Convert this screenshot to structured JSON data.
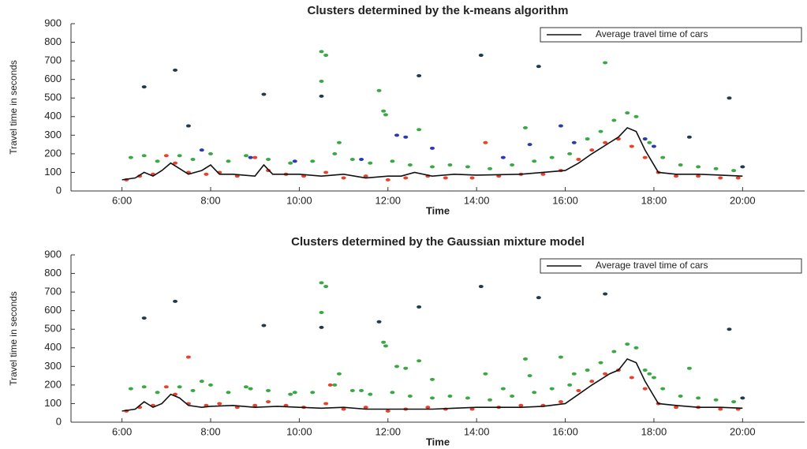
{
  "chart_data": [
    {
      "type": "scatter",
      "title": "Clusters determined by the k-means algorithm",
      "xlabel": "Time",
      "ylabel": "Travel time in seconds",
      "xlim": [
        4.85,
        21.4
      ],
      "xticks": [
        {
          "value": 6,
          "label": "6:00"
        },
        {
          "value": 8,
          "label": "8:00"
        },
        {
          "value": 10,
          "label": "10:00"
        },
        {
          "value": 12,
          "label": "12:00"
        },
        {
          "value": 14,
          "label": "14:00"
        },
        {
          "value": 16,
          "label": "16:00"
        },
        {
          "value": 18,
          "label": "18:00"
        },
        {
          "value": 20,
          "label": "20:00"
        }
      ],
      "ylim": [
        0,
        900
      ],
      "yticks": [
        0,
        100,
        200,
        300,
        400,
        500,
        600,
        700,
        800,
        900
      ],
      "legend": "upper right",
      "series": [
        {
          "color": "#e8412c",
          "x": [
            6.1,
            6.4,
            6.7,
            7.0,
            7.2,
            7.5,
            7.9,
            8.2,
            8.6,
            9.0,
            9.3,
            9.7,
            10.1,
            10.6,
            11.0,
            11.5,
            12.0,
            12.4,
            12.9,
            13.3,
            13.9,
            14.2,
            14.5,
            15.0,
            15.5,
            15.9,
            16.3,
            16.6,
            16.9,
            17.2,
            17.5,
            17.8,
            18.1,
            18.5,
            19.0,
            19.5,
            19.9
          ],
          "values": [
            60,
            80,
            90,
            190,
            150,
            100,
            90,
            100,
            80,
            180,
            110,
            90,
            80,
            100,
            70,
            80,
            60,
            70,
            80,
            70,
            70,
            260,
            80,
            90,
            90,
            110,
            170,
            220,
            260,
            280,
            240,
            180,
            100,
            80,
            80,
            70,
            70
          ]
        },
        {
          "color": "#3aa845",
          "x": [
            6.2,
            6.5,
            6.8,
            7.3,
            7.6,
            8.0,
            8.4,
            8.8,
            9.3,
            9.8,
            10.3,
            10.8,
            11.2,
            11.6,
            12.1,
            12.5,
            13.0,
            13.4,
            13.8,
            14.3,
            14.8,
            15.3,
            15.7,
            16.1,
            16.5,
            16.8,
            17.1,
            17.4,
            17.6,
            17.9,
            18.2,
            18.6,
            19.0,
            19.4,
            19.8,
            10.5,
            10.6,
            10.5,
            11.8,
            11.9,
            11.95,
            12.7,
            16.9,
            10.9,
            15.1
          ],
          "values": [
            180,
            190,
            160,
            190,
            170,
            200,
            160,
            190,
            170,
            150,
            160,
            200,
            170,
            150,
            160,
            140,
            130,
            140,
            130,
            120,
            140,
            160,
            180,
            200,
            280,
            320,
            380,
            420,
            400,
            260,
            180,
            140,
            130,
            120,
            110,
            750,
            730,
            590,
            540,
            430,
            410,
            330,
            690,
            260,
            340
          ]
        },
        {
          "color": "#2a3bb0",
          "x": [
            7.8,
            8.9,
            9.9,
            11.4,
            12.2,
            12.4,
            13.0,
            14.6,
            15.2,
            15.9,
            16.2,
            17.8,
            18.0
          ],
          "values": [
            220,
            180,
            160,
            170,
            300,
            290,
            230,
            180,
            250,
            350,
            260,
            280,
            240
          ]
        },
        {
          "color": "#1f3b4d",
          "x": [
            6.5,
            7.2,
            7.5,
            9.2,
            10.5,
            12.7,
            14.1,
            15.4,
            18.8,
            19.7,
            20.0
          ],
          "values": [
            560,
            650,
            350,
            520,
            510,
            620,
            730,
            670,
            290,
            500,
            130
          ]
        },
        {
          "type": "line",
          "name": "Average travel time of cars",
          "color": "#111111",
          "x": [
            6.0,
            6.3,
            6.5,
            6.7,
            6.9,
            7.1,
            7.3,
            7.5,
            7.8,
            8.0,
            8.2,
            8.5,
            9.0,
            9.2,
            9.4,
            10.0,
            10.5,
            11.0,
            11.5,
            12.0,
            12.3,
            12.6,
            13.0,
            13.5,
            14.0,
            15.0,
            15.5,
            16.0,
            16.3,
            16.6,
            17.0,
            17.2,
            17.4,
            17.6,
            17.8,
            18.1,
            18.5,
            19.0,
            19.5,
            20.0
          ],
          "values": [
            60,
            70,
            100,
            80,
            110,
            150,
            120,
            90,
            110,
            140,
            90,
            90,
            80,
            140,
            90,
            90,
            80,
            90,
            70,
            80,
            80,
            100,
            80,
            90,
            85,
            90,
            100,
            110,
            150,
            200,
            260,
            290,
            340,
            320,
            220,
            100,
            90,
            90,
            85,
            80
          ]
        }
      ]
    },
    {
      "type": "scatter",
      "title": "Clusters determined by the Gaussian mixture model",
      "xlabel": "Time",
      "ylabel": "Travel time in seconds",
      "xlim": [
        4.85,
        21.4
      ],
      "xticks": [
        {
          "value": 6,
          "label": "6:00"
        },
        {
          "value": 8,
          "label": "8:00"
        },
        {
          "value": 10,
          "label": "10:00"
        },
        {
          "value": 12,
          "label": "12:00"
        },
        {
          "value": 14,
          "label": "14:00"
        },
        {
          "value": 16,
          "label": "16:00"
        },
        {
          "value": 18,
          "label": "18:00"
        },
        {
          "value": 20,
          "label": "20:00"
        }
      ],
      "ylim": [
        0,
        900
      ],
      "yticks": [
        0,
        100,
        200,
        300,
        400,
        500,
        600,
        700,
        800,
        900
      ],
      "legend": "upper right",
      "series": [
        {
          "color": "#e8412c",
          "x": [
            6.1,
            6.4,
            6.7,
            7.0,
            7.2,
            7.5,
            7.9,
            8.2,
            8.6,
            9.0,
            9.3,
            9.7,
            10.1,
            10.6,
            11.0,
            11.5,
            12.0,
            12.4,
            12.9,
            13.3,
            13.9,
            14.5,
            15.0,
            15.5,
            15.9,
            16.3,
            16.6,
            16.9,
            17.2,
            17.5,
            17.8,
            18.1,
            18.5,
            19.0,
            19.5,
            19.9,
            7.5,
            10.7
          ],
          "values": [
            60,
            80,
            90,
            190,
            150,
            100,
            90,
            100,
            80,
            90,
            110,
            90,
            80,
            100,
            70,
            80,
            60,
            70,
            80,
            70,
            70,
            80,
            90,
            90,
            110,
            170,
            220,
            260,
            280,
            240,
            180,
            100,
            80,
            80,
            70,
            70,
            350,
            200
          ]
        },
        {
          "color": "#3aa845",
          "x": [
            6.2,
            6.5,
            6.8,
            7.3,
            7.6,
            8.0,
            8.4,
            8.8,
            9.3,
            9.8,
            10.3,
            10.8,
            11.2,
            11.6,
            12.1,
            12.5,
            13.0,
            13.4,
            13.8,
            14.3,
            14.8,
            15.3,
            15.7,
            16.1,
            16.5,
            16.8,
            17.1,
            17.4,
            17.6,
            17.9,
            18.2,
            18.6,
            19.0,
            19.4,
            19.8,
            10.5,
            10.6,
            10.5,
            11.9,
            11.95,
            12.7,
            10.9,
            15.1,
            7.8,
            8.9,
            9.9,
            11.4,
            12.2,
            12.4,
            13.0,
            14.6,
            15.2,
            15.9,
            16.2,
            17.8,
            18.0,
            18.8,
            14.2
          ],
          "values": [
            180,
            190,
            160,
            190,
            170,
            200,
            160,
            190,
            170,
            150,
            160,
            200,
            170,
            150,
            160,
            140,
            130,
            140,
            130,
            120,
            140,
            160,
            180,
            200,
            280,
            320,
            380,
            420,
            400,
            260,
            180,
            140,
            130,
            120,
            110,
            750,
            730,
            590,
            430,
            410,
            330,
            260,
            340,
            220,
            180,
            160,
            170,
            300,
            290,
            230,
            180,
            250,
            350,
            260,
            280,
            240,
            290,
            260
          ]
        },
        {
          "color": "#1f3b4d",
          "x": [
            6.5,
            7.2,
            9.2,
            10.5,
            11.8,
            12.7,
            14.1,
            15.4,
            16.9,
            19.7,
            20.0
          ],
          "values": [
            560,
            650,
            520,
            510,
            540,
            620,
            730,
            670,
            690,
            500,
            130
          ]
        },
        {
          "type": "line",
          "name": "Average travel time of cars",
          "color": "#111111",
          "x": [
            6.0,
            6.3,
            6.5,
            6.7,
            6.9,
            7.1,
            7.3,
            7.5,
            7.8,
            8.0,
            8.5,
            9.0,
            9.5,
            10.0,
            10.5,
            11.0,
            11.5,
            12.0,
            12.5,
            13.0,
            13.5,
            14.0,
            15.0,
            15.5,
            16.0,
            16.3,
            16.6,
            17.0,
            17.2,
            17.4,
            17.6,
            17.8,
            18.1,
            18.5,
            19.0,
            19.5,
            20.0
          ],
          "values": [
            60,
            70,
            110,
            80,
            100,
            150,
            130,
            90,
            80,
            85,
            90,
            80,
            85,
            80,
            75,
            80,
            70,
            70,
            70,
            70,
            75,
            80,
            80,
            85,
            100,
            150,
            200,
            260,
            280,
            340,
            320,
            220,
            100,
            90,
            80,
            80,
            75
          ]
        }
      ]
    }
  ]
}
